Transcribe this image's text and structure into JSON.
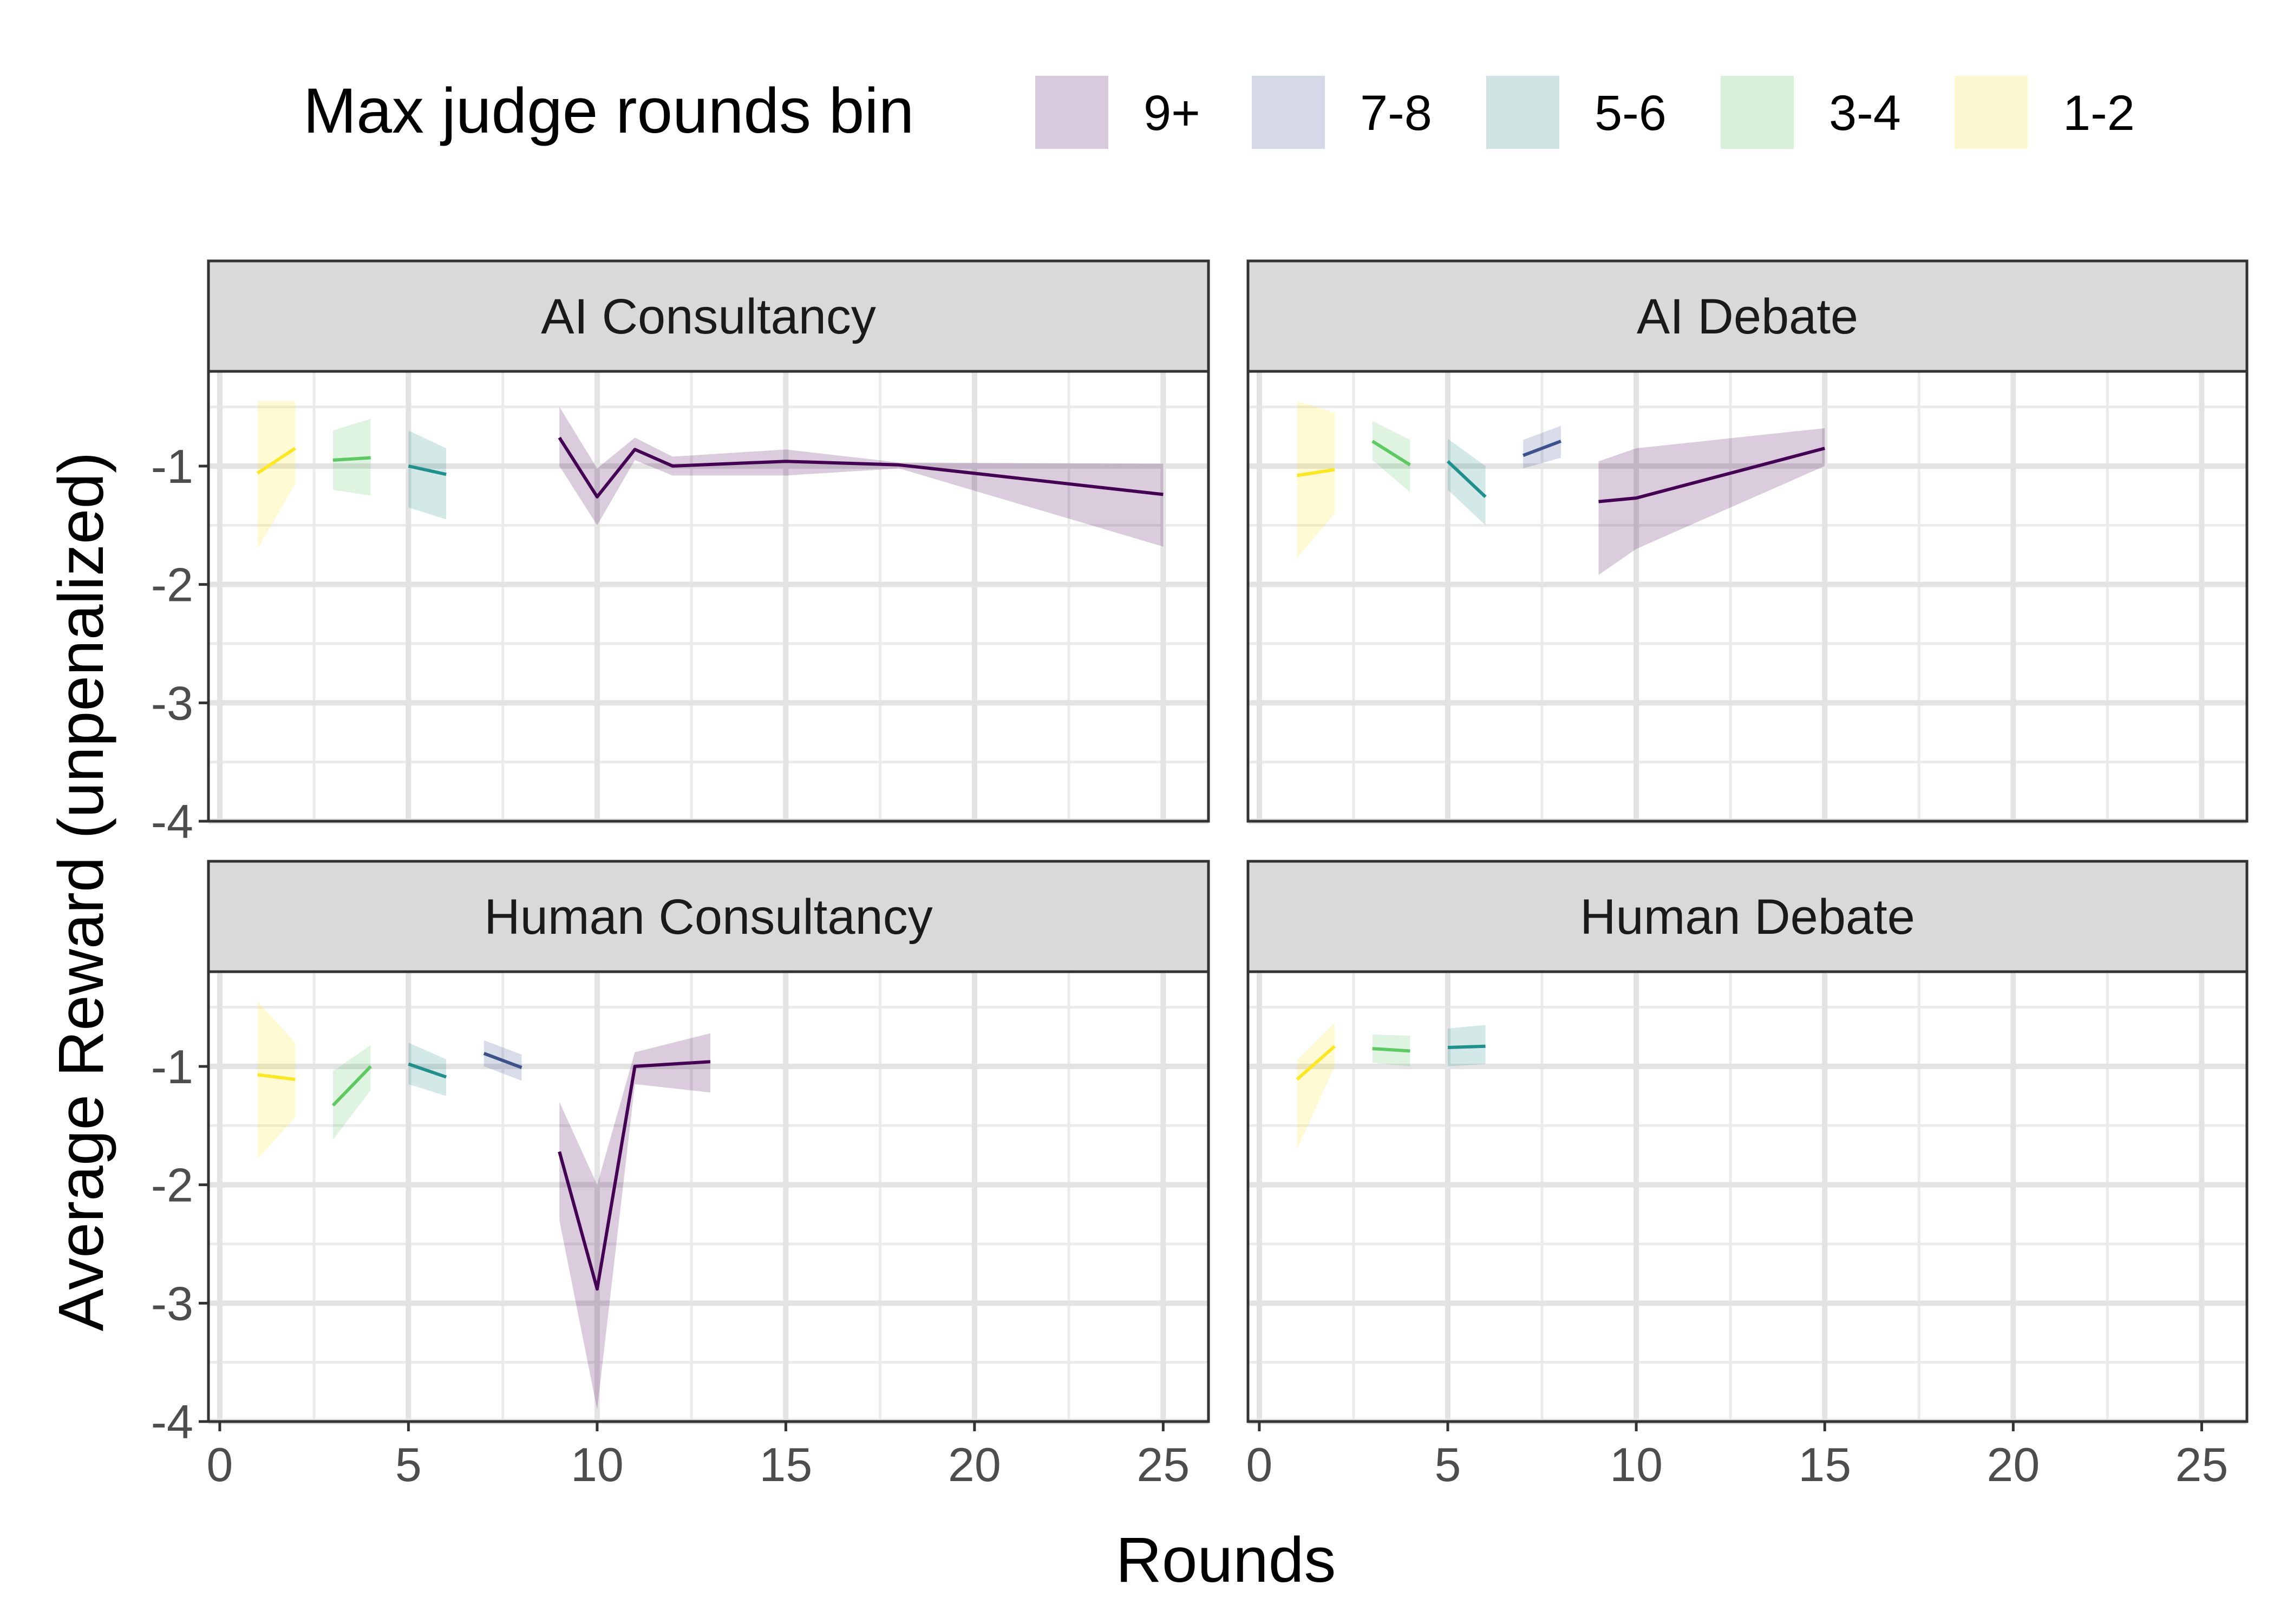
{
  "chart_data": {
    "type": "line",
    "xlabel": "Rounds",
    "ylabel": "Average Reward (unpenalized)",
    "xlim": [
      -0.3,
      26.2
    ],
    "ylim": [
      -4.0,
      -0.2
    ],
    "x_ticks": [
      0,
      5,
      10,
      15,
      20,
      25
    ],
    "x_tick_labels": [
      "0",
      "5",
      "10",
      "15",
      "20",
      "25"
    ],
    "y_ticks": [
      -1,
      -2,
      -3,
      -4
    ],
    "y_tick_labels": [
      "-1",
      "-2",
      "-3",
      "-4"
    ],
    "grid": true,
    "legend": {
      "title": "Max judge rounds bin",
      "position": "top",
      "entries": [
        {
          "label": "9+",
          "line_color": "#440154",
          "fill_color": "#d8c9dc"
        },
        {
          "label": "7-8",
          "line_color": "#3b528b",
          "fill_color": "#d5d8e6"
        },
        {
          "label": "5-6",
          "line_color": "#21908c",
          "fill_color": "#d0e3e3"
        },
        {
          "label": "3-4",
          "line_color": "#5ec962",
          "fill_color": "#d8f0da"
        },
        {
          "label": "1-2",
          "line_color": "#fde725",
          "fill_color": "#fcf8d0"
        }
      ]
    },
    "panels": [
      {
        "title": "AI Consultancy",
        "series": [
          {
            "bin": "1-2",
            "x": [
              1,
              2
            ],
            "y": [
              -1.06,
              -0.85
            ],
            "ymin": [
              -1.7,
              -1.15
            ],
            "ymax": [
              -0.45,
              -0.45
            ]
          },
          {
            "bin": "3-4",
            "x": [
              3,
              4
            ],
            "y": [
              -0.95,
              -0.93
            ],
            "ymin": [
              -1.2,
              -1.25
            ],
            "ymax": [
              -0.7,
              -0.6
            ]
          },
          {
            "bin": "5-6",
            "x": [
              5,
              6
            ],
            "y": [
              -1.0,
              -1.07
            ],
            "ymin": [
              -1.35,
              -1.45
            ],
            "ymax": [
              -0.7,
              -0.85
            ]
          },
          {
            "bin": "9+",
            "x": [
              9,
              10,
              11,
              12,
              15,
              18,
              25
            ],
            "y": [
              -0.76,
              -1.26,
              -0.86,
              -1.0,
              -0.96,
              -0.99,
              -1.24
            ],
            "ymin": [
              -1.0,
              -1.5,
              -0.95,
              -1.08,
              -1.08,
              -1.02,
              -1.68
            ],
            "ymax": [
              -0.5,
              -1.02,
              -0.76,
              -0.92,
              -0.86,
              -0.97,
              -0.98
            ]
          }
        ]
      },
      {
        "title": "AI Debate",
        "series": [
          {
            "bin": "1-2",
            "x": [
              1,
              2
            ],
            "y": [
              -1.08,
              -1.03
            ],
            "ymin": [
              -1.78,
              -1.4
            ],
            "ymax": [
              -0.45,
              -0.55
            ]
          },
          {
            "bin": "3-4",
            "x": [
              3,
              4
            ],
            "y": [
              -0.79,
              -0.99
            ],
            "ymin": [
              -0.95,
              -1.22
            ],
            "ymax": [
              -0.62,
              -0.78
            ]
          },
          {
            "bin": "5-6",
            "x": [
              5,
              6
            ],
            "y": [
              -0.96,
              -1.26
            ],
            "ymin": [
              -1.2,
              -1.5
            ],
            "ymax": [
              -0.77,
              -1.0
            ]
          },
          {
            "bin": "7-8",
            "x": [
              7,
              8
            ],
            "y": [
              -0.91,
              -0.79
            ],
            "ymin": [
              -1.02,
              -0.93
            ],
            "ymax": [
              -0.78,
              -0.66
            ]
          },
          {
            "bin": "9+",
            "x": [
              9,
              10,
              15
            ],
            "y": [
              -1.3,
              -1.27,
              -0.85
            ],
            "ymin": [
              -1.92,
              -1.7,
              -1.0
            ],
            "ymax": [
              -0.96,
              -0.85,
              -0.68
            ]
          }
        ]
      },
      {
        "title": "Human Consultancy",
        "series": [
          {
            "bin": "1-2",
            "x": [
              1,
              2
            ],
            "y": [
              -1.07,
              -1.11
            ],
            "ymin": [
              -1.78,
              -1.43
            ],
            "ymax": [
              -0.45,
              -0.8
            ]
          },
          {
            "bin": "3-4",
            "x": [
              3,
              4
            ],
            "y": [
              -1.33,
              -1.0
            ],
            "ymin": [
              -1.62,
              -1.2
            ],
            "ymax": [
              -1.04,
              -0.82
            ]
          },
          {
            "bin": "5-6",
            "x": [
              5,
              6
            ],
            "y": [
              -0.98,
              -1.09
            ],
            "ymin": [
              -1.15,
              -1.25
            ],
            "ymax": [
              -0.8,
              -0.94
            ]
          },
          {
            "bin": "7-8",
            "x": [
              7,
              8
            ],
            "y": [
              -0.89,
              -1.01
            ],
            "ymin": [
              -1.0,
              -1.12
            ],
            "ymax": [
              -0.78,
              -0.9
            ]
          },
          {
            "bin": "9+",
            "x": [
              9,
              10,
              11,
              13
            ],
            "y": [
              -1.72,
              -2.88,
              -1.0,
              -0.96
            ],
            "ymin": [
              -2.3,
              -3.9,
              -1.15,
              -1.22
            ],
            "ymax": [
              -1.3,
              -2.0,
              -0.88,
              -0.72
            ]
          }
        ]
      },
      {
        "title": "Human Debate",
        "series": [
          {
            "bin": "1-2",
            "x": [
              1,
              2
            ],
            "y": [
              -1.11,
              -0.83
            ],
            "ymin": [
              -1.7,
              -1.0
            ],
            "ymax": [
              -0.95,
              -0.63
            ]
          },
          {
            "bin": "3-4",
            "x": [
              3,
              4
            ],
            "y": [
              -0.85,
              -0.87
            ],
            "ymin": [
              -0.97,
              -1.0
            ],
            "ymax": [
              -0.73,
              -0.74
            ]
          },
          {
            "bin": "5-6",
            "x": [
              5,
              6
            ],
            "y": [
              -0.84,
              -0.83
            ],
            "ymin": [
              -1.0,
              -0.98
            ],
            "ymax": [
              -0.68,
              -0.65
            ]
          }
        ]
      }
    ]
  }
}
